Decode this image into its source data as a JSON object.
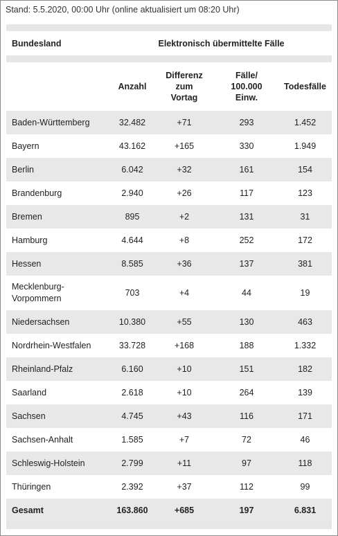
{
  "stand": "Stand: 5.5.2020, 00:00 Uhr (online aktualisiert um 08:20 Uhr)",
  "table": {
    "header": {
      "bundesland": "Bundesland",
      "group": "Elektronisch übermittelte Fälle"
    },
    "columns": [
      [
        "Anzahl"
      ],
      [
        "Differenz",
        "zum",
        "Vortag"
      ],
      [
        "Fälle/",
        "100.000",
        "Einw."
      ],
      [
        "Todesfälle"
      ]
    ],
    "rows": [
      [
        "Baden-Württemberg",
        "32.482",
        "+71",
        "293",
        "1.452"
      ],
      [
        "Bayern",
        "43.162",
        "+165",
        "330",
        "1.949"
      ],
      [
        "Berlin",
        "6.042",
        "+32",
        "161",
        "154"
      ],
      [
        "Brandenburg",
        "2.940",
        "+26",
        "117",
        "123"
      ],
      [
        "Bremen",
        "895",
        "+2",
        "131",
        "31"
      ],
      [
        "Hamburg",
        "4.644",
        "+8",
        "252",
        "172"
      ],
      [
        "Hessen",
        "8.585",
        "+36",
        "137",
        "381"
      ],
      [
        "Mecklenburg-Vorpommern",
        "703",
        "+4",
        "44",
        "19"
      ],
      [
        "Niedersachsen",
        "10.380",
        "+55",
        "130",
        "463"
      ],
      [
        "Nordrhein-Westfalen",
        "33.728",
        "+168",
        "188",
        "1.332"
      ],
      [
        "Rheinland-Pfalz",
        "6.160",
        "+10",
        "151",
        "182"
      ],
      [
        "Saarland",
        "2.618",
        "+10",
        "264",
        "139"
      ],
      [
        "Sachsen",
        "4.745",
        "+43",
        "116",
        "171"
      ],
      [
        "Sachsen-Anhalt",
        "1.585",
        "+7",
        "72",
        "46"
      ],
      [
        "Schleswig-Holstein",
        "2.799",
        "+11",
        "97",
        "118"
      ],
      [
        "Thüringen",
        "2.392",
        "+37",
        "112",
        "99"
      ]
    ],
    "total": [
      "Gesamt",
      "163.860",
      "+685",
      "197",
      "6.831"
    ]
  }
}
